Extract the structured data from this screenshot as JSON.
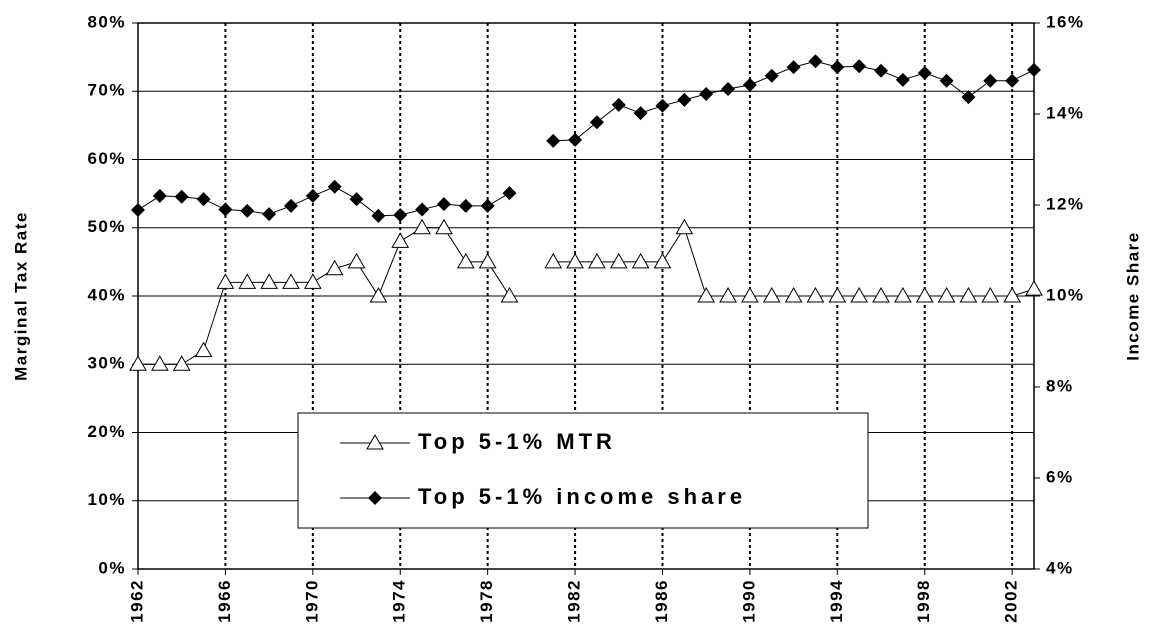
{
  "chart_data": {
    "type": "line",
    "x": [
      1962,
      1963,
      1964,
      1965,
      1966,
      1967,
      1968,
      1969,
      1970,
      1971,
      1972,
      1973,
      1974,
      1975,
      1976,
      1977,
      1978,
      1979,
      1980,
      1981,
      1982,
      1983,
      1984,
      1985,
      1986,
      1987,
      1988,
      1989,
      1990,
      1991,
      1992,
      1993,
      1994,
      1995,
      1996,
      1997,
      1998,
      1999,
      2000,
      2001,
      2002,
      2003
    ],
    "series": [
      {
        "name": "Top 5-1% MTR",
        "color": "#000000",
        "marker": "triangle",
        "values": [
          30,
          30,
          30,
          32,
          42,
          42,
          42,
          42,
          42,
          44,
          45,
          40,
          48,
          50,
          50,
          45,
          45,
          40,
          null,
          45,
          45,
          45,
          45,
          45,
          45,
          50,
          40,
          40,
          40,
          40,
          40,
          40,
          40,
          40,
          40,
          40,
          40,
          40,
          40,
          40,
          40,
          41
        ]
      },
      {
        "name": "Top 5-1% income share",
        "color": "#000000",
        "marker": "diamond",
        "axis": "y2",
        "values": [
          11.89,
          12.2,
          12.18,
          12.13,
          11.9,
          11.87,
          11.8,
          11.98,
          12.2,
          12.4,
          12.13,
          11.76,
          11.78,
          11.9,
          12.02,
          11.98,
          11.98,
          12.26,
          null,
          13.41,
          13.43,
          13.82,
          14.2,
          14.02,
          14.18,
          14.31,
          14.44,
          14.55,
          14.64,
          14.84,
          15.03,
          15.16,
          15.03,
          15.05,
          14.95,
          14.75,
          14.9,
          14.73,
          14.37,
          14.73,
          14.73,
          14.97
        ]
      }
    ],
    "xlim": [
      1962,
      2003
    ],
    "xticks": [
      1962,
      1966,
      1970,
      1974,
      1978,
      1982,
      1986,
      1990,
      1994,
      1998,
      2002
    ],
    "ylabel": "Marginal Tax Rate",
    "y2label": "Income Share",
    "ylim": [
      0,
      80
    ],
    "yticks": [
      {
        "value": 0,
        "label": "0%"
      },
      {
        "value": 10,
        "label": "10%"
      },
      {
        "value": 20,
        "label": "20%"
      },
      {
        "value": 30,
        "label": "30%"
      },
      {
        "value": 40,
        "label": "40%"
      },
      {
        "value": 50,
        "label": "50%"
      },
      {
        "value": 60,
        "label": "60%"
      },
      {
        "value": 70,
        "label": "70%"
      },
      {
        "value": 80,
        "label": "80%"
      }
    ],
    "y2lim": [
      4,
      16
    ],
    "y2ticks": [
      {
        "value": 4,
        "label": "4%"
      },
      {
        "value": 6,
        "label": "6%"
      },
      {
        "value": 8,
        "label": "8%"
      },
      {
        "value": 10,
        "label": "10%"
      },
      {
        "value": 12,
        "label": "12%"
      },
      {
        "value": 14,
        "label": "14%"
      },
      {
        "value": 16,
        "label": "16%"
      }
    ],
    "grid": true
  }
}
